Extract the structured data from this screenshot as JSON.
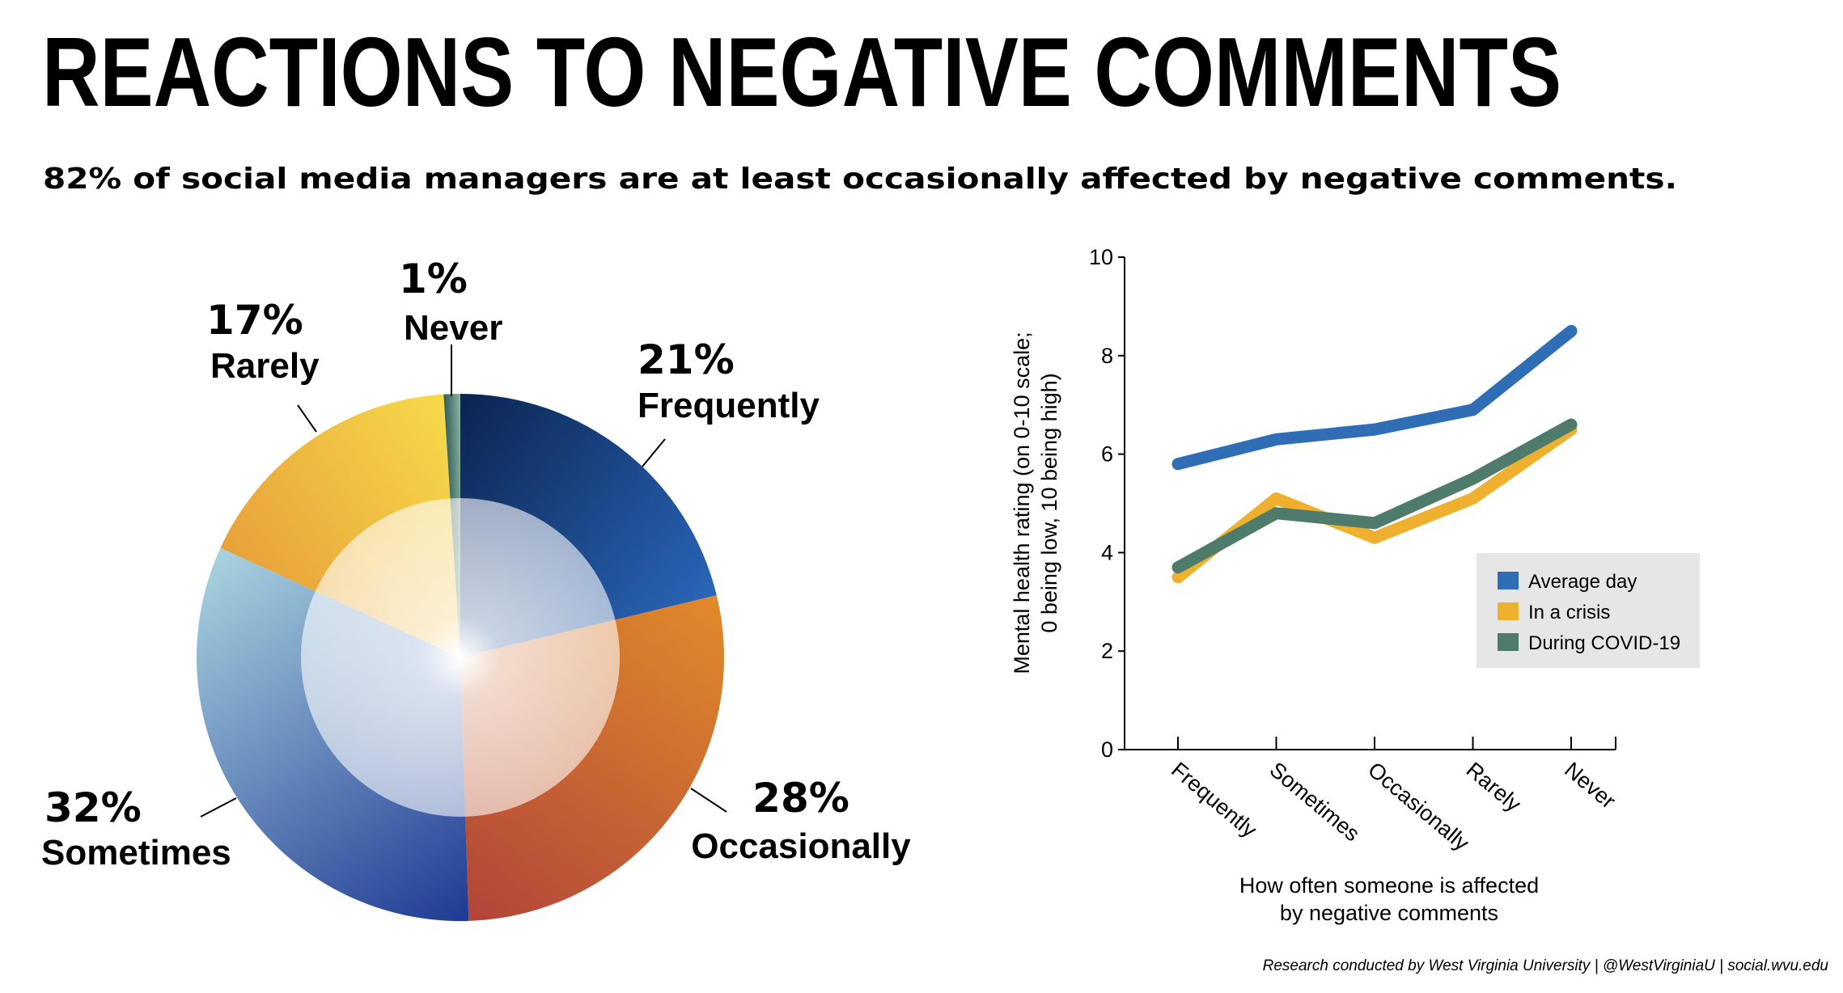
{
  "title": "REACTIONS TO NEGATIVE COMMENTS",
  "subtitle": "82% of social media managers are at least occasionally affected by negative comments.",
  "footer": "Research conducted by West Virginia University | @WestVirginiaU | social.wvu.edu",
  "chart_data": [
    {
      "type": "pie",
      "categories": [
        "Frequently",
        "Occasionally",
        "Sometimes",
        "Rarely",
        "Never"
      ],
      "values": [
        21,
        28,
        32,
        17,
        1
      ],
      "value_labels": [
        "21%",
        "28%",
        "32%",
        "17%",
        "1%"
      ],
      "colors": [
        [
          "#0b2450",
          "#2a66b9"
        ],
        [
          "#e08a2a",
          "#b2453a"
        ],
        [
          "#1f3a94",
          "#a9d3df"
        ],
        [
          "#e8a03a",
          "#f6da4a"
        ],
        [
          "#2f5e56",
          "#8fb3a6"
        ]
      ]
    },
    {
      "type": "line",
      "categories": [
        "Frequently",
        "Sometimes",
        "Occasionally",
        "Rarely",
        "Never"
      ],
      "series": [
        {
          "name": "Average day",
          "color": "#2f6db5",
          "values": [
            5.8,
            6.3,
            6.5,
            6.9,
            8.5
          ]
        },
        {
          "name": "In a crisis",
          "color": "#efb02f",
          "values": [
            3.5,
            5.1,
            4.3,
            5.1,
            6.5
          ]
        },
        {
          "name": "During COVID-19",
          "color": "#4e7b6c",
          "values": [
            3.7,
            4.8,
            4.6,
            5.5,
            6.6
          ]
        }
      ],
      "ylim": [
        0,
        10
      ],
      "yticks": [
        0,
        2,
        4,
        6,
        8,
        10
      ],
      "ylabel": [
        "Mental health rating (on 0-10 scale;",
        "0 being low, 10 being high)"
      ],
      "xlabel": [
        "How often someone is affected",
        "by negative comments"
      ],
      "legend": "lower right"
    }
  ]
}
